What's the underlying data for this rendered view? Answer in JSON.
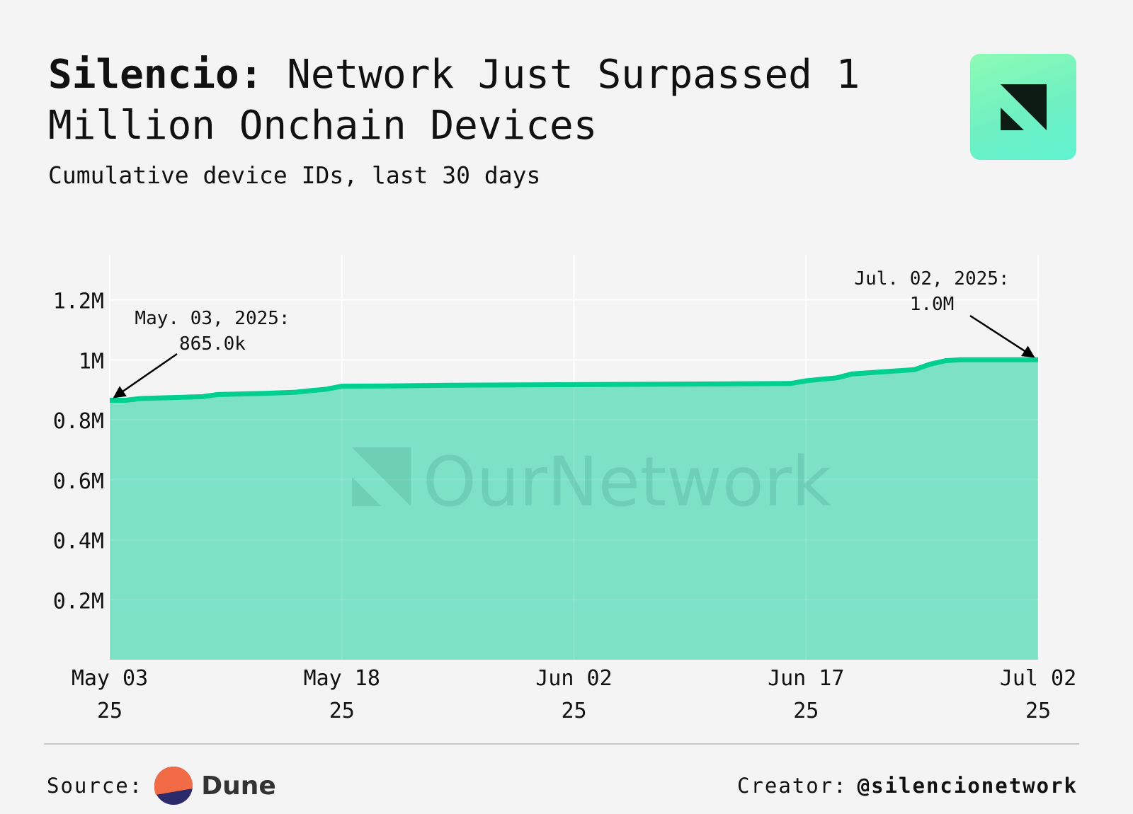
{
  "header": {
    "title_bold": "Silencio:",
    "title_rest": "Network Just Surpassed 1 Million Onchain Devices",
    "subtitle": "Cumulative device IDs, last 30 days"
  },
  "colors": {
    "background": "#f4f4f4",
    "line": "#00cf8f",
    "area": "#7ae0c5",
    "grid": "#ffffff",
    "text": "#111111"
  },
  "chart_data": {
    "type": "area",
    "title": "Silencio: Network Just Surpassed 1 Million Onchain Devices",
    "subtitle": "Cumulative device IDs, last 30 days",
    "xlabel": "",
    "ylabel": "",
    "x_start": "2025-05-03",
    "x_end": "2025-07-02",
    "x_ticks": [
      {
        "date": "2025-05-03",
        "line1": "May 03",
        "line2": "25"
      },
      {
        "date": "2025-05-18",
        "line1": "May 18",
        "line2": "25"
      },
      {
        "date": "2025-06-02",
        "line1": "Jun 02",
        "line2": "25"
      },
      {
        "date": "2025-06-17",
        "line1": "Jun 17",
        "line2": "25"
      },
      {
        "date": "2025-07-02",
        "line1": "Jul 02",
        "line2": "25"
      }
    ],
    "y_ticks": [
      {
        "value": 200000,
        "label": "0.2M"
      },
      {
        "value": 400000,
        "label": "0.4M"
      },
      {
        "value": 600000,
        "label": "0.6M"
      },
      {
        "value": 800000,
        "label": "0.8M"
      },
      {
        "value": 1000000,
        "label": "1M"
      },
      {
        "value": 1200000,
        "label": "1.2M"
      }
    ],
    "ylim": [
      0,
      1350000
    ],
    "grid": true,
    "series": [
      {
        "points": [
          [
            "2025-05-03",
            865000
          ],
          [
            "2025-05-04",
            865000
          ],
          [
            "2025-05-05",
            871000
          ],
          [
            "2025-05-07",
            874000
          ],
          [
            "2025-05-09",
            877000
          ],
          [
            "2025-05-10",
            884000
          ],
          [
            "2025-05-13",
            888000
          ],
          [
            "2025-05-15",
            892000
          ],
          [
            "2025-05-16",
            897000
          ],
          [
            "2025-05-17",
            902000
          ],
          [
            "2025-05-18",
            912000
          ],
          [
            "2025-05-21",
            913000
          ],
          [
            "2025-05-25",
            915000
          ],
          [
            "2025-06-01",
            917000
          ],
          [
            "2025-06-09",
            919000
          ],
          [
            "2025-06-16",
            921000
          ],
          [
            "2025-06-17",
            930000
          ],
          [
            "2025-06-19",
            940000
          ],
          [
            "2025-06-20",
            953000
          ],
          [
            "2025-06-22",
            960000
          ],
          [
            "2025-06-24",
            967000
          ],
          [
            "2025-06-25",
            985000
          ],
          [
            "2025-06-26",
            997000
          ],
          [
            "2025-06-27",
            1000000
          ],
          [
            "2025-07-02",
            1000000
          ]
        ]
      }
    ],
    "annotations": [
      {
        "date": "2025-05-03",
        "value": 865000,
        "line1": "May. 03, 2025:",
        "line2": "865.0k"
      },
      {
        "date": "2025-07-02",
        "value": 1000000,
        "line1": "Jul. 02, 2025:",
        "line2": "1.0M"
      }
    ],
    "watermark": "OurNetwork"
  },
  "footer": {
    "source_label": "Source:",
    "source_name": "Dune",
    "creator_label": "Creator:",
    "creator_handle": "@silencionetwork"
  }
}
